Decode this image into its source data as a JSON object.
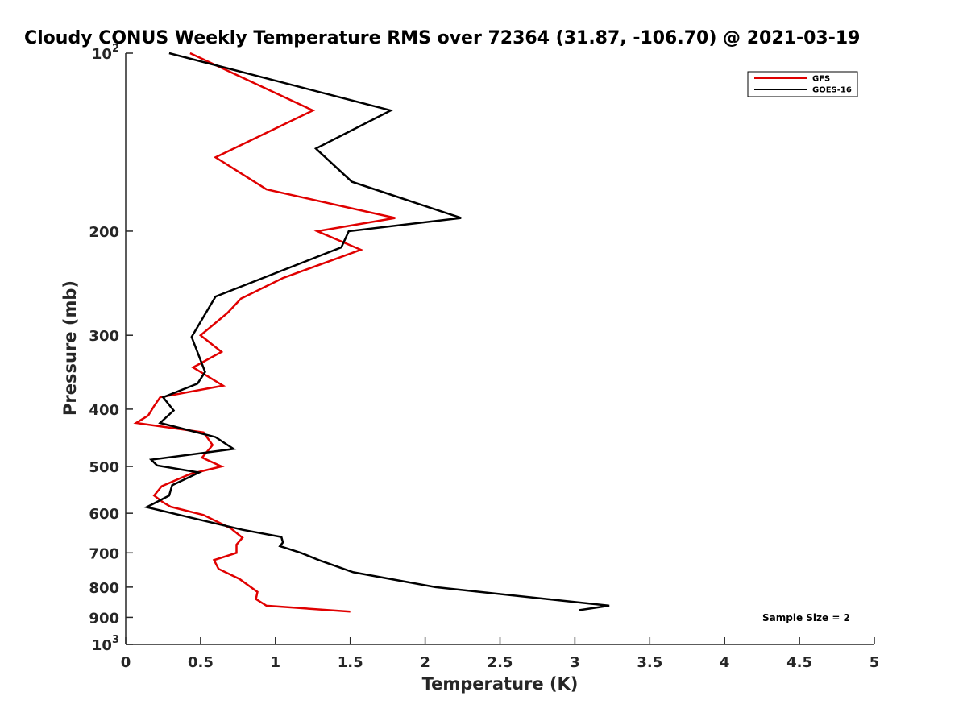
{
  "chart_data": {
    "type": "line",
    "title": "Cloudy CONUS Weekly Temperature RMS over 72364 (31.87, -106.70) @ 2021-03-19",
    "xlabel": "Temperature (K)",
    "ylabel": "Pressure (mb)",
    "xlim": [
      0,
      5
    ],
    "ylim": [
      100,
      1000
    ],
    "yscale": "log",
    "y_reversed": true,
    "grid": false,
    "legend_position": "top-right",
    "x_ticks": [
      "0",
      "0.5",
      "1",
      "1.5",
      "2",
      "2.5",
      "3",
      "3.5",
      "4",
      "4.5",
      "5"
    ],
    "y_ticks": [
      {
        "value": 100,
        "base": "10",
        "exp": "2"
      },
      {
        "value": 200,
        "label": "200"
      },
      {
        "value": 300,
        "label": "300"
      },
      {
        "value": 400,
        "label": "400"
      },
      {
        "value": 500,
        "label": "500"
      },
      {
        "value": 600,
        "label": "600"
      },
      {
        "value": 700,
        "label": "700"
      },
      {
        "value": 800,
        "label": "800"
      },
      {
        "value": 900,
        "label": "900"
      },
      {
        "value": 1000,
        "base": "10",
        "exp": "3"
      }
    ],
    "annotation": "Sample Size = 2",
    "series": [
      {
        "name": "GFS",
        "color": "#e00000",
        "points": [
          [
            0.43,
            100
          ],
          [
            1.25,
            125
          ],
          [
            0.6,
            150
          ],
          [
            0.94,
            170
          ],
          [
            1.8,
            190
          ],
          [
            1.28,
            200
          ],
          [
            1.57,
            215
          ],
          [
            1.05,
            240
          ],
          [
            0.77,
            260
          ],
          [
            0.68,
            275
          ],
          [
            0.5,
            300
          ],
          [
            0.64,
            320
          ],
          [
            0.45,
            340
          ],
          [
            0.65,
            365
          ],
          [
            0.23,
            382
          ],
          [
            0.19,
            395
          ],
          [
            0.15,
            410
          ],
          [
            0.07,
            422
          ],
          [
            0.52,
            438
          ],
          [
            0.58,
            460
          ],
          [
            0.55,
            470
          ],
          [
            0.51,
            483
          ],
          [
            0.64,
            500
          ],
          [
            0.43,
            515
          ],
          [
            0.24,
            540
          ],
          [
            0.19,
            560
          ],
          [
            0.25,
            575
          ],
          [
            0.3,
            585
          ],
          [
            0.52,
            604
          ],
          [
            0.7,
            636
          ],
          [
            0.78,
            660
          ],
          [
            0.74,
            678
          ],
          [
            0.74,
            700
          ],
          [
            0.59,
            720
          ],
          [
            0.62,
            745
          ],
          [
            0.76,
            775
          ],
          [
            0.88,
            815
          ],
          [
            0.87,
            838
          ],
          [
            0.94,
            860
          ],
          [
            1.5,
            880
          ]
        ]
      },
      {
        "name": "GOES-16",
        "color": "#000000",
        "points": [
          [
            0.29,
            100
          ],
          [
            1.77,
            125
          ],
          [
            1.27,
            145
          ],
          [
            1.51,
            165
          ],
          [
            2.24,
            190
          ],
          [
            1.49,
            200
          ],
          [
            1.44,
            213
          ],
          [
            0.6,
            258
          ],
          [
            0.44,
            302
          ],
          [
            0.53,
            346
          ],
          [
            0.48,
            362
          ],
          [
            0.25,
            382
          ],
          [
            0.32,
            402
          ],
          [
            0.23,
            422
          ],
          [
            0.6,
            446
          ],
          [
            0.72,
            467
          ],
          [
            0.17,
            487
          ],
          [
            0.21,
            498
          ],
          [
            0.49,
            512
          ],
          [
            0.31,
            538
          ],
          [
            0.29,
            560
          ],
          [
            0.14,
            586
          ],
          [
            0.78,
            640
          ],
          [
            1.04,
            658
          ],
          [
            1.05,
            672
          ],
          [
            1.03,
            682
          ],
          [
            1.17,
            700
          ],
          [
            1.29,
            720
          ],
          [
            1.52,
            755
          ],
          [
            2.07,
            800
          ],
          [
            3.23,
            860
          ],
          [
            3.03,
            875
          ]
        ]
      }
    ]
  }
}
